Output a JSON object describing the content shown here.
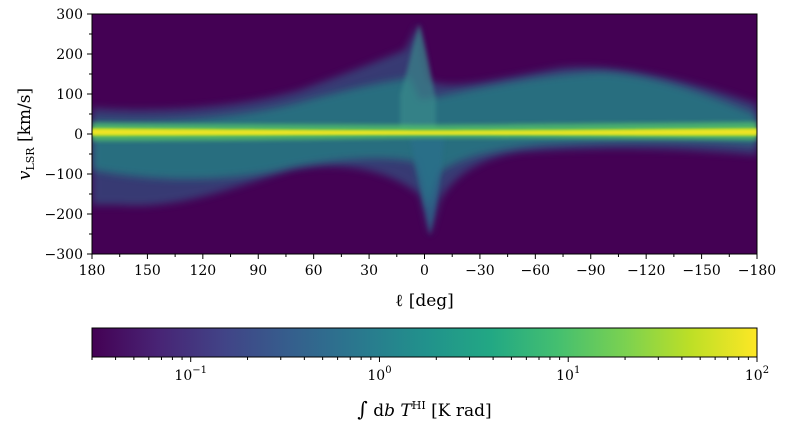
{
  "chart_data": {
    "type": "heatmap",
    "title": "",
    "xlabel": "ℓ [deg]",
    "ylabel_main": "v",
    "ylabel_sub": "LSR",
    "ylabel_unit": " [km/s]",
    "xlim": [
      180,
      -180
    ],
    "ylim": [
      -300,
      300
    ],
    "x_ticks": [
      180,
      150,
      120,
      90,
      60,
      30,
      0,
      -30,
      -60,
      -90,
      -120,
      -150,
      -180
    ],
    "x_tick_labels": [
      "180",
      "150",
      "120",
      "90",
      "60",
      "30",
      "0",
      "−30",
      "−60",
      "−90",
      "−120",
      "−150",
      "−180"
    ],
    "y_ticks": [
      300,
      200,
      100,
      0,
      -100,
      -200,
      -300
    ],
    "y_tick_labels": [
      "300",
      "200",
      "100",
      "0",
      "−100",
      "−200",
      "−300"
    ],
    "colormap": "viridis",
    "color_scale": "log",
    "color_range": [
      0.03,
      100
    ],
    "colorbar": {
      "position": "bottom",
      "ticks": [
        {
          "value": 0.1,
          "base": "10",
          "exp": "−1"
        },
        {
          "value": 1,
          "base": "10",
          "exp": "0"
        },
        {
          "value": 10,
          "base": "10",
          "exp": "1"
        },
        {
          "value": 100,
          "base": "10",
          "exp": "2"
        }
      ],
      "label_int": "∫",
      "label_db": " d",
      "label_b": "b",
      "label_T": " T",
      "label_sup": "HI",
      "label_unit": " [K rad]"
    },
    "features": {
      "disk_ridge_velocity": 0,
      "rotation_curve_positive_l_extent": -120,
      "rotation_curve_negative_l_extent": 120,
      "galactic_center_velocity_extent": [
        -260,
        270
      ]
    }
  }
}
